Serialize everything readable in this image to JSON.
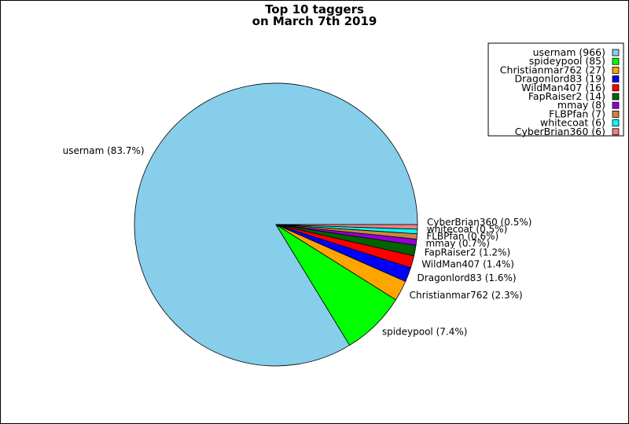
{
  "chart_data": {
    "type": "pie",
    "title": "Top 10 taggers",
    "subtitle": "on March 7th 2019",
    "legend_placement": "top-right",
    "slices": [
      {
        "name": "usernam",
        "value": 966,
        "percent_label": "83.7%",
        "color": "#87ceeb"
      },
      {
        "name": "spideypool",
        "value": 85,
        "percent_label": "7.4%",
        "color": "#00ff00"
      },
      {
        "name": "Christianmar762",
        "value": 27,
        "percent_label": "2.3%",
        "color": "#ffa500"
      },
      {
        "name": "Dragonlord83",
        "value": 19,
        "percent_label": "1.6%",
        "color": "#0000ff"
      },
      {
        "name": "WildMan407",
        "value": 16,
        "percent_label": "1.4%",
        "color": "#ff0000"
      },
      {
        "name": "FapRaiser2",
        "value": 14,
        "percent_label": "1.2%",
        "color": "#006400"
      },
      {
        "name": "mmay",
        "value": 8,
        "percent_label": "0.7%",
        "color": "#9400d3"
      },
      {
        "name": "FLBPfan",
        "value": 7,
        "percent_label": "0.6%",
        "color": "#cd853f"
      },
      {
        "name": "whitecoat",
        "value": 6,
        "percent_label": "0.5%",
        "color": "#00ffff"
      },
      {
        "name": "CyberBrian360",
        "value": 6,
        "percent_label": "0.5%",
        "color": "#f08080"
      }
    ]
  }
}
